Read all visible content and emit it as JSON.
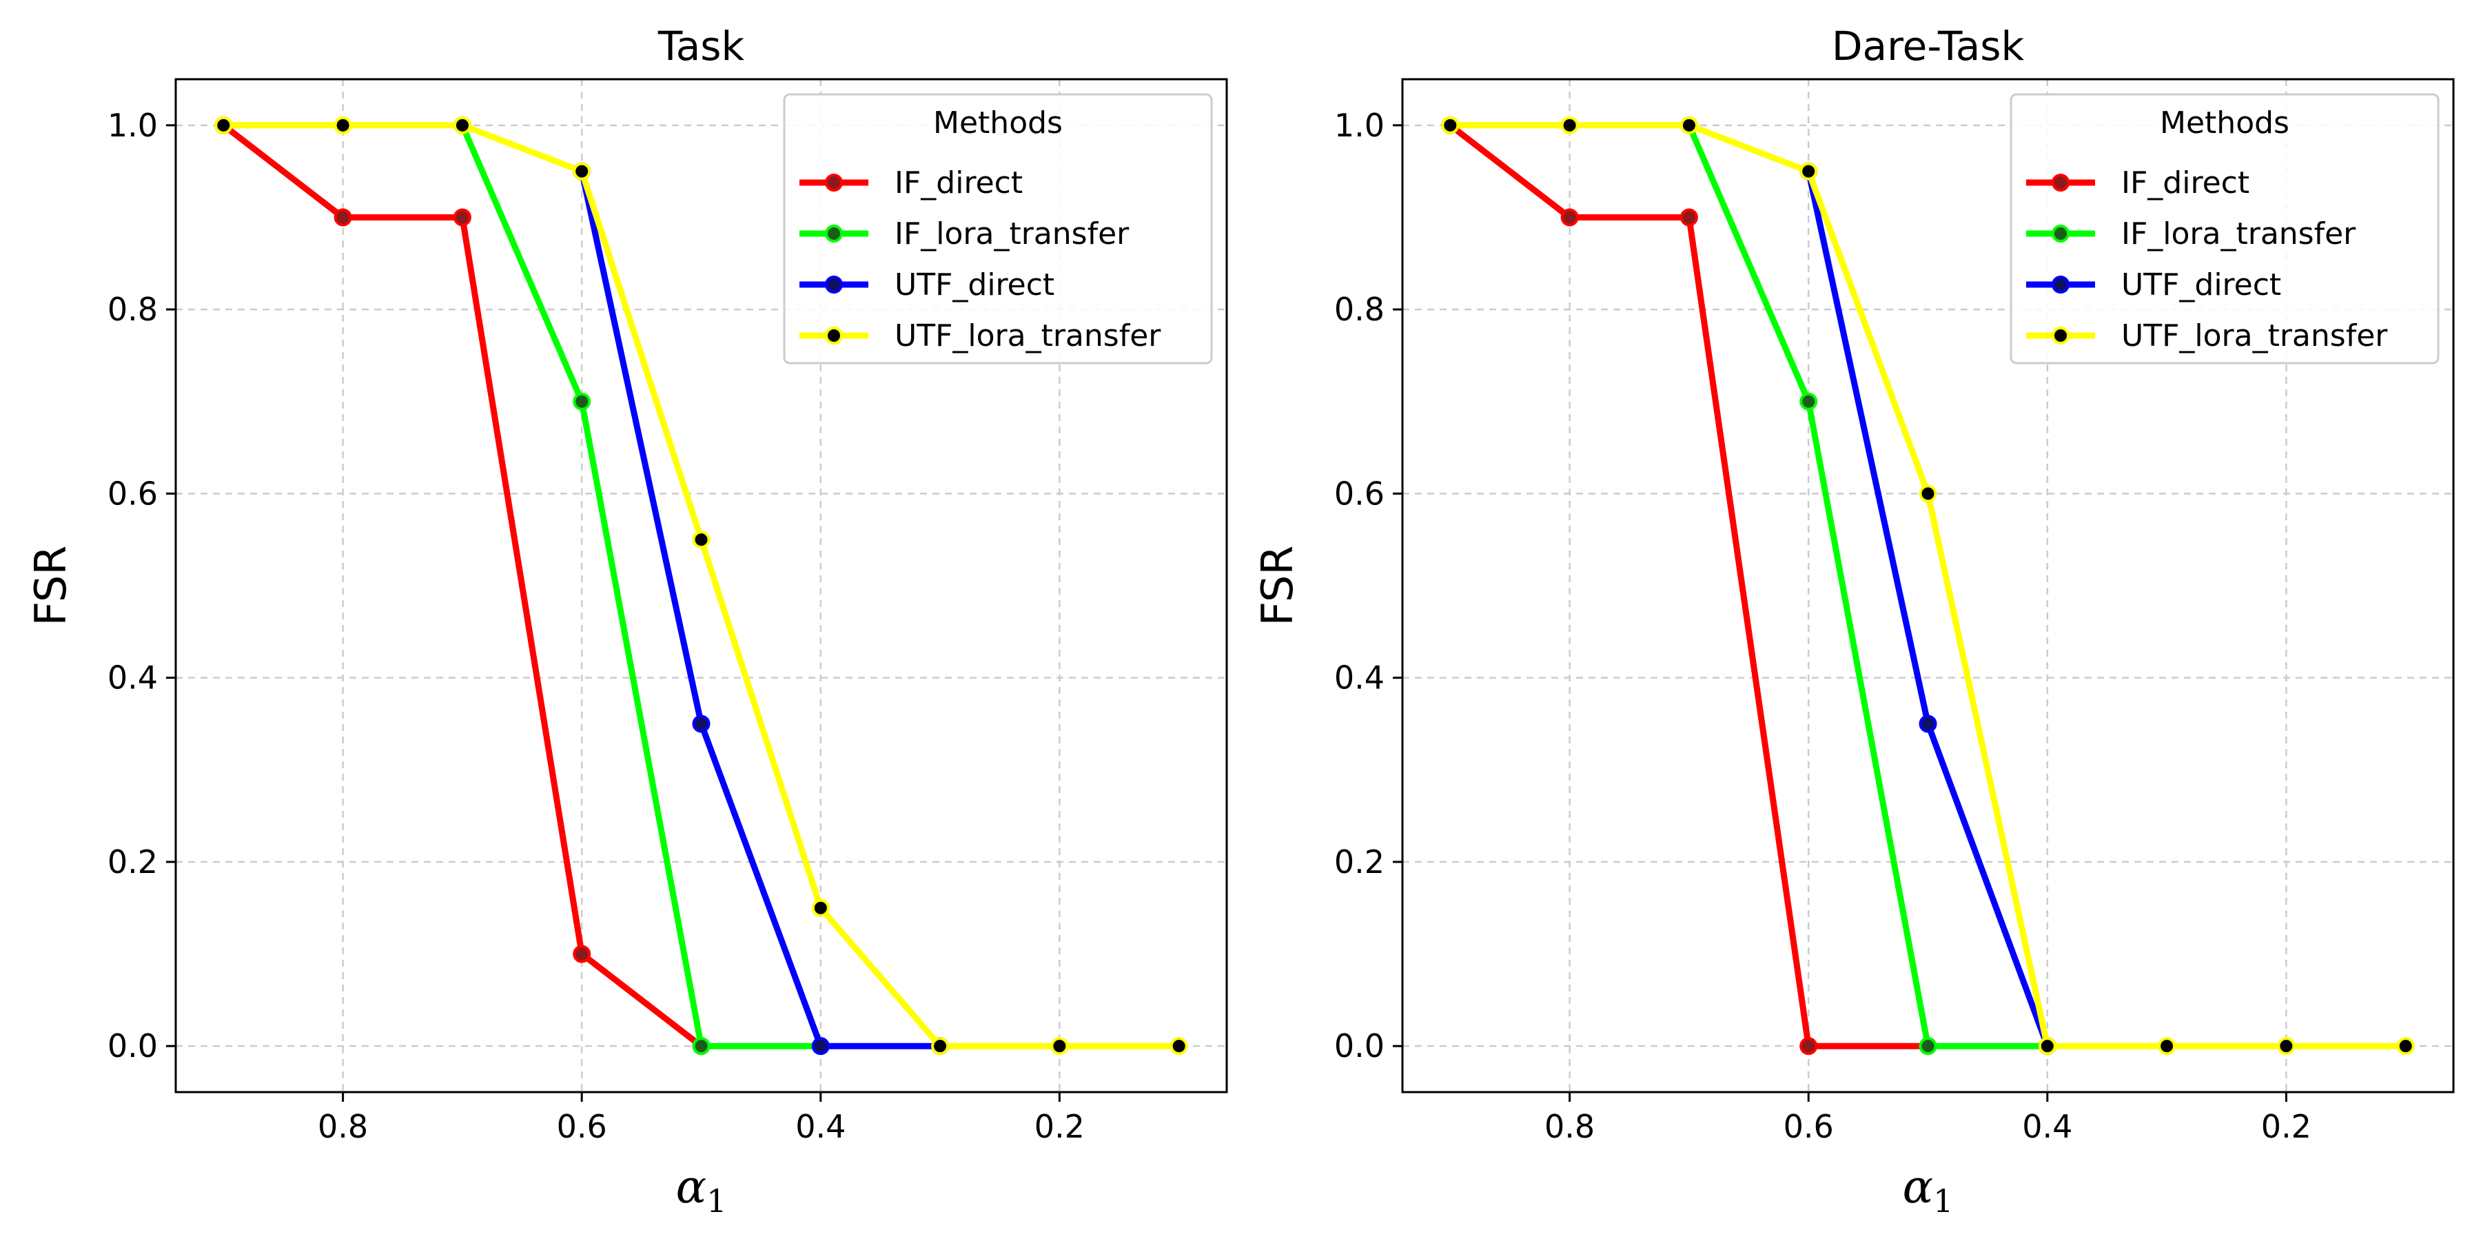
{
  "chart_data": [
    {
      "type": "line",
      "title": "Task",
      "xlabel": "α",
      "xlabel_sub": "1",
      "ylabel": "FSR",
      "xlim": [
        0.94,
        0.06
      ],
      "ylim": [
        -0.05,
        1.05
      ],
      "x_reversed": true,
      "xticks": [
        0.8,
        0.6,
        0.4,
        0.2
      ],
      "xtick_labels": [
        "0.8",
        "0.6",
        "0.4",
        "0.2"
      ],
      "yticks": [
        0.0,
        0.2,
        0.4,
        0.6,
        0.8,
        1.0
      ],
      "ytick_labels": [
        "0.0",
        "0.2",
        "0.4",
        "0.6",
        "0.8",
        "1.0"
      ],
      "grid": true,
      "legend": {
        "title": "Methods",
        "position": "top-right"
      },
      "x": [
        0.9,
        0.8,
        0.7,
        0.6,
        0.5,
        0.4,
        0.3,
        0.2,
        0.1
      ],
      "series": [
        {
          "name": "IF_direct",
          "color": "#ff0000",
          "marker_color": "#8b1a1a",
          "x": [
            0.9,
            0.8,
            0.7,
            0.6,
            0.5
          ],
          "values": [
            1.0,
            0.9,
            0.9,
            0.1,
            0.0
          ]
        },
        {
          "name": "IF_lora_transfer",
          "color": "#00ff00",
          "marker_color": "#1a5c1a",
          "x": [
            0.7,
            0.6,
            0.5,
            0.4
          ],
          "values": [
            1.0,
            0.7,
            0.0,
            0.0
          ]
        },
        {
          "name": "UTF_direct",
          "color": "#0000ff",
          "marker_color": "#101060",
          "x": [
            0.6,
            0.5,
            0.4,
            0.3
          ],
          "values": [
            0.95,
            0.35,
            0.0,
            0.0
          ]
        },
        {
          "name": "UTF_lora_transfer",
          "color": "#ffff00",
          "marker_color": "#000000",
          "x": [
            0.9,
            0.8,
            0.7,
            0.6,
            0.5,
            0.4,
            0.3,
            0.2,
            0.1
          ],
          "values": [
            1.0,
            1.0,
            1.0,
            0.95,
            0.55,
            0.15,
            0.0,
            0.0,
            0.0
          ]
        }
      ]
    },
    {
      "type": "line",
      "title": "Dare-Task",
      "xlabel": "α",
      "xlabel_sub": "1",
      "ylabel": "FSR",
      "xlim": [
        0.94,
        0.06
      ],
      "ylim": [
        -0.05,
        1.05
      ],
      "x_reversed": true,
      "xticks": [
        0.8,
        0.6,
        0.4,
        0.2
      ],
      "xtick_labels": [
        "0.8",
        "0.6",
        "0.4",
        "0.2"
      ],
      "yticks": [
        0.0,
        0.2,
        0.4,
        0.6,
        0.8,
        1.0
      ],
      "ytick_labels": [
        "0.0",
        "0.2",
        "0.4",
        "0.6",
        "0.8",
        "1.0"
      ],
      "grid": true,
      "legend": {
        "title": "Methods",
        "position": "top-right"
      },
      "x": [
        0.9,
        0.8,
        0.7,
        0.6,
        0.5,
        0.4,
        0.3,
        0.2,
        0.1
      ],
      "series": [
        {
          "name": "IF_direct",
          "color": "#ff0000",
          "marker_color": "#8b1a1a",
          "x": [
            0.9,
            0.8,
            0.7,
            0.6,
            0.5
          ],
          "values": [
            1.0,
            0.9,
            0.9,
            0.0,
            0.0
          ]
        },
        {
          "name": "IF_lora_transfer",
          "color": "#00ff00",
          "marker_color": "#1a5c1a",
          "x": [
            0.7,
            0.6,
            0.5,
            0.4
          ],
          "values": [
            1.0,
            0.7,
            0.0,
            0.0
          ]
        },
        {
          "name": "UTF_direct",
          "color": "#0000ff",
          "marker_color": "#101060",
          "x": [
            0.6,
            0.5,
            0.4
          ],
          "values": [
            0.95,
            0.35,
            0.0
          ]
        },
        {
          "name": "UTF_lora_transfer",
          "color": "#ffff00",
          "marker_color": "#000000",
          "x": [
            0.9,
            0.8,
            0.7,
            0.6,
            0.5,
            0.4,
            0.3,
            0.2,
            0.1
          ],
          "values": [
            1.0,
            1.0,
            1.0,
            0.95,
            0.6,
            0.0,
            0.0,
            0.0,
            0.0
          ]
        }
      ]
    }
  ]
}
